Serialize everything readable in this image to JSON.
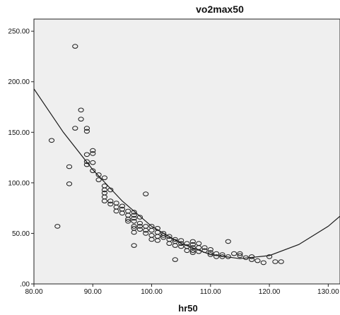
{
  "chart_data": {
    "type": "scatter",
    "title": "vo2max50",
    "xlabel": "hr50",
    "ylabel": "",
    "xlim": [
      80,
      132
    ],
    "ylim": [
      0,
      262
    ],
    "x_ticks": [
      80,
      90,
      100,
      110,
      120,
      130
    ],
    "y_ticks": [
      0,
      50,
      100,
      150,
      200,
      250
    ],
    "x_tick_labels": [
      "80.00",
      "90.00",
      "100.00",
      "110.00",
      "120.00",
      "130.00"
    ],
    "y_tick_labels": [
      ".00",
      "50.00",
      "100.00",
      "150.00",
      "200.00",
      "250.00"
    ],
    "grid": false,
    "plot_background": "#efefef",
    "point_color": "#1a1a1a",
    "fit_line": {
      "type": "quadratic",
      "points": [
        {
          "x": 80,
          "y": 193
        },
        {
          "x": 85,
          "y": 150
        },
        {
          "x": 90,
          "y": 113
        },
        {
          "x": 95,
          "y": 82
        },
        {
          "x": 100,
          "y": 57
        },
        {
          "x": 105,
          "y": 40
        },
        {
          "x": 110,
          "y": 29
        },
        {
          "x": 115,
          "y": 25
        },
        {
          "x": 120,
          "y": 28
        },
        {
          "x": 125,
          "y": 39
        },
        {
          "x": 130,
          "y": 57
        },
        {
          "x": 132,
          "y": 67
        }
      ]
    },
    "points": [
      {
        "x": 83,
        "y": 142
      },
      {
        "x": 84,
        "y": 57
      },
      {
        "x": 86,
        "y": 116
      },
      {
        "x": 86,
        "y": 99
      },
      {
        "x": 87,
        "y": 235
      },
      {
        "x": 87,
        "y": 154
      },
      {
        "x": 88,
        "y": 172
      },
      {
        "x": 88,
        "y": 163
      },
      {
        "x": 89,
        "y": 154
      },
      {
        "x": 89,
        "y": 151
      },
      {
        "x": 89,
        "y": 128
      },
      {
        "x": 89,
        "y": 121
      },
      {
        "x": 89,
        "y": 118
      },
      {
        "x": 90,
        "y": 132
      },
      {
        "x": 90,
        "y": 129
      },
      {
        "x": 90,
        "y": 120
      },
      {
        "x": 90,
        "y": 112
      },
      {
        "x": 91,
        "y": 108
      },
      {
        "x": 91,
        "y": 103
      },
      {
        "x": 92,
        "y": 105
      },
      {
        "x": 92,
        "y": 97
      },
      {
        "x": 92,
        "y": 93
      },
      {
        "x": 92,
        "y": 90
      },
      {
        "x": 92,
        "y": 86
      },
      {
        "x": 92,
        "y": 82
      },
      {
        "x": 93,
        "y": 93
      },
      {
        "x": 93,
        "y": 82
      },
      {
        "x": 93,
        "y": 79
      },
      {
        "x": 94,
        "y": 80
      },
      {
        "x": 94,
        "y": 76
      },
      {
        "x": 94,
        "y": 72
      },
      {
        "x": 95,
        "y": 77
      },
      {
        "x": 95,
        "y": 74
      },
      {
        "x": 95,
        "y": 70
      },
      {
        "x": 96,
        "y": 72
      },
      {
        "x": 96,
        "y": 68
      },
      {
        "x": 96,
        "y": 64
      },
      {
        "x": 96,
        "y": 62
      },
      {
        "x": 97,
        "y": 71
      },
      {
        "x": 97,
        "y": 68
      },
      {
        "x": 97,
        "y": 65
      },
      {
        "x": 97,
        "y": 62
      },
      {
        "x": 97,
        "y": 57
      },
      {
        "x": 97,
        "y": 55
      },
      {
        "x": 97,
        "y": 51
      },
      {
        "x": 97,
        "y": 38
      },
      {
        "x": 98,
        "y": 66
      },
      {
        "x": 98,
        "y": 60
      },
      {
        "x": 98,
        "y": 57
      },
      {
        "x": 98,
        "y": 54
      },
      {
        "x": 99,
        "y": 89
      },
      {
        "x": 99,
        "y": 57
      },
      {
        "x": 99,
        "y": 53
      },
      {
        "x": 99,
        "y": 50
      },
      {
        "x": 100,
        "y": 57
      },
      {
        "x": 100,
        "y": 53
      },
      {
        "x": 100,
        "y": 48
      },
      {
        "x": 100,
        "y": 44
      },
      {
        "x": 101,
        "y": 55
      },
      {
        "x": 101,
        "y": 51
      },
      {
        "x": 101,
        "y": 47
      },
      {
        "x": 101,
        "y": 43
      },
      {
        "x": 102,
        "y": 50
      },
      {
        "x": 102,
        "y": 48
      },
      {
        "x": 102,
        "y": 46
      },
      {
        "x": 103,
        "y": 47
      },
      {
        "x": 103,
        "y": 44
      },
      {
        "x": 103,
        "y": 40
      },
      {
        "x": 104,
        "y": 44
      },
      {
        "x": 104,
        "y": 42
      },
      {
        "x": 104,
        "y": 38
      },
      {
        "x": 104,
        "y": 24
      },
      {
        "x": 105,
        "y": 43
      },
      {
        "x": 105,
        "y": 40
      },
      {
        "x": 105,
        "y": 37
      },
      {
        "x": 106,
        "y": 40
      },
      {
        "x": 106,
        "y": 37
      },
      {
        "x": 106,
        "y": 33
      },
      {
        "x": 107,
        "y": 42
      },
      {
        "x": 107,
        "y": 39
      },
      {
        "x": 107,
        "y": 36
      },
      {
        "x": 107,
        "y": 33
      },
      {
        "x": 107,
        "y": 31
      },
      {
        "x": 108,
        "y": 40
      },
      {
        "x": 108,
        "y": 36
      },
      {
        "x": 108,
        "y": 32
      },
      {
        "x": 109,
        "y": 36
      },
      {
        "x": 109,
        "y": 33
      },
      {
        "x": 110,
        "y": 34
      },
      {
        "x": 110,
        "y": 31
      },
      {
        "x": 110,
        "y": 29
      },
      {
        "x": 111,
        "y": 30
      },
      {
        "x": 111,
        "y": 27
      },
      {
        "x": 112,
        "y": 29
      },
      {
        "x": 112,
        "y": 27
      },
      {
        "x": 113,
        "y": 42
      },
      {
        "x": 113,
        "y": 27
      },
      {
        "x": 114,
        "y": 30
      },
      {
        "x": 115,
        "y": 30
      },
      {
        "x": 115,
        "y": 28
      },
      {
        "x": 116,
        "y": 26
      },
      {
        "x": 117,
        "y": 27
      },
      {
        "x": 117,
        "y": 24
      },
      {
        "x": 118,
        "y": 23
      },
      {
        "x": 119,
        "y": 21
      },
      {
        "x": 120,
        "y": 27
      },
      {
        "x": 121,
        "y": 22
      },
      {
        "x": 122,
        "y": 22
      }
    ]
  }
}
